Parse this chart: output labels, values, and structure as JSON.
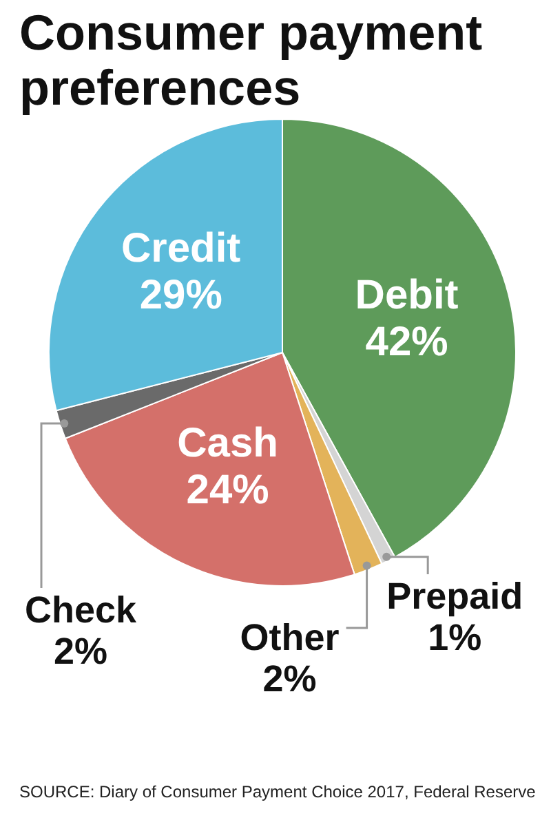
{
  "chart_data": {
    "type": "pie",
    "title": "Consumer payment preferences",
    "categories": [
      "Debit",
      "Prepaid",
      "Other",
      "Cash",
      "Check",
      "Credit"
    ],
    "values": [
      42,
      1,
      2,
      24,
      2,
      29
    ],
    "value_labels": [
      "42%",
      "1%",
      "2%",
      "24%",
      "2%",
      "29%"
    ],
    "colors": [
      "#5e9b5a",
      "#d4d4d4",
      "#e3b35a",
      "#d4706a",
      "#6a6a6a",
      "#5cbcdb"
    ],
    "legend": false,
    "annotations": [
      "SOURCE: Diary of Consumer Payment Choice 2017, Federal Reserve"
    ]
  }
}
